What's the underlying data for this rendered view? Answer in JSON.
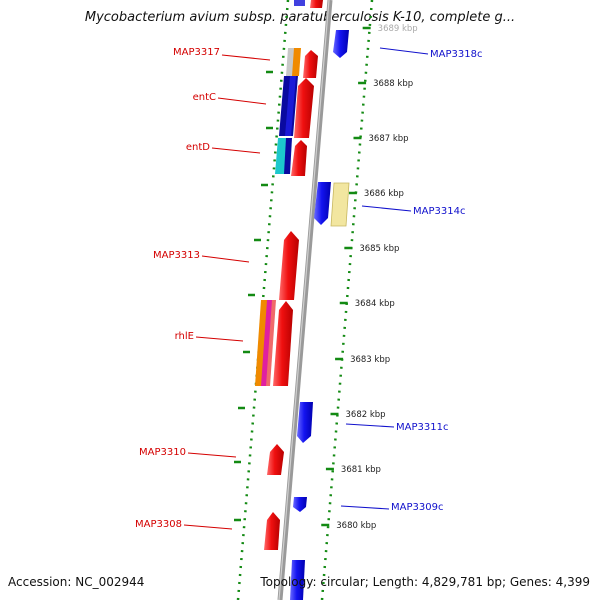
{
  "title": "Mycobacterium avium subsp. paratuberculosis K-10, complete g...",
  "footer": {
    "accession": "Accession: NC_002944",
    "topology": "Topology: circular; Length: 4,829,781 bp; Genes: 4,399"
  },
  "colors": {
    "forward_label": "#d40000",
    "reverse_label": "#1010cc",
    "forward_gene": "#f01010",
    "reverse_gene": "#1010f0",
    "backbone": "#8a8a8a",
    "dotted_guide": "#138a13",
    "cds_dark_blue": "#0a0aa0",
    "cds_cyan": "#1cc8cc",
    "cds_orange": "#f08a00",
    "cds_light_grey": "#c8c8c8",
    "cds_pale_yellow": "#f2e6a0",
    "cds_magenta": "#e020a0"
  },
  "ticks": [
    {
      "label": "3689 kbp",
      "kbp": 3689
    },
    {
      "label": "3688 kbp",
      "kbp": 3688
    },
    {
      "label": "3687 kbp",
      "kbp": 3687
    },
    {
      "label": "3686 kbp",
      "kbp": 3686
    },
    {
      "label": "3685 kbp",
      "kbp": 3685
    },
    {
      "label": "3684 kbp",
      "kbp": 3684
    },
    {
      "label": "3683 kbp",
      "kbp": 3683
    },
    {
      "label": "3682 kbp",
      "kbp": 3682
    },
    {
      "label": "3681 kbp",
      "kbp": 3681
    },
    {
      "label": "3680 kbp",
      "kbp": 3680
    }
  ],
  "gene_labels": [
    {
      "text": "MAP3317",
      "strand": "forward"
    },
    {
      "text": "MAP3318c",
      "strand": "reverse"
    },
    {
      "text": "entC",
      "strand": "forward"
    },
    {
      "text": "entD",
      "strand": "forward"
    },
    {
      "text": "MAP3314c",
      "strand": "reverse"
    },
    {
      "text": "MAP3313",
      "strand": "forward"
    },
    {
      "text": "rhlE",
      "strand": "forward"
    },
    {
      "text": "MAP3311c",
      "strand": "reverse"
    },
    {
      "text": "MAP3310",
      "strand": "forward"
    },
    {
      "text": "MAP3309c",
      "strand": "reverse"
    },
    {
      "text": "MAP3308",
      "strand": "forward"
    }
  ]
}
